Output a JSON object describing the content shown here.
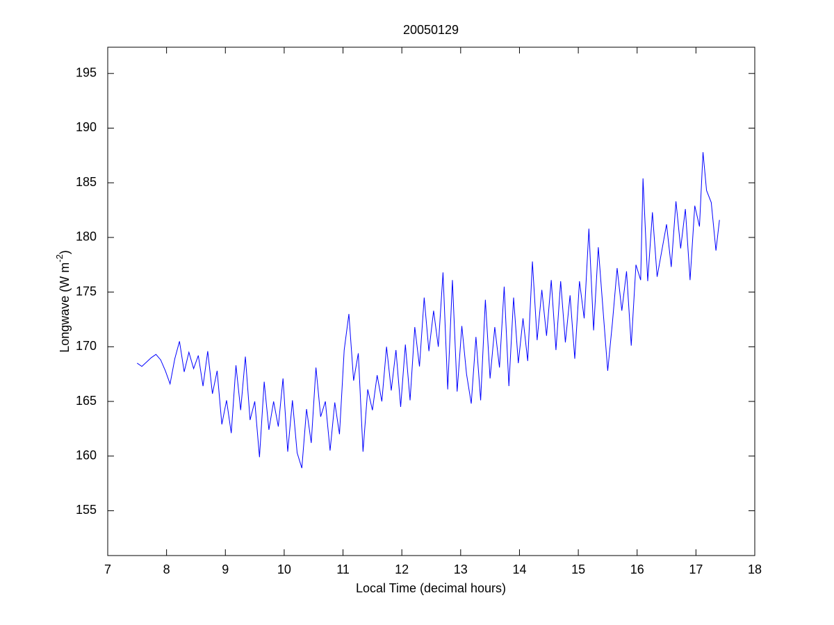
{
  "chart_data": {
    "type": "line",
    "title": "20050129",
    "xlabel": "Local Time (decimal hours)",
    "ylabel": {
      "base": "Longwave (W m",
      "sup": "-2",
      "close": ")"
    },
    "x": [
      7.5,
      7.58,
      7.66,
      7.74,
      7.82,
      7.9,
      7.98,
      8.06,
      8.14,
      8.22,
      8.3,
      8.38,
      8.46,
      8.54,
      8.62,
      8.7,
      8.78,
      8.86,
      8.94,
      9.02,
      9.1,
      9.18,
      9.26,
      9.34,
      9.42,
      9.5,
      9.58,
      9.66,
      9.74,
      9.82,
      9.9,
      9.98,
      10.06,
      10.14,
      10.22,
      10.3,
      10.38,
      10.46,
      10.54,
      10.62,
      10.7,
      10.78,
      10.86,
      10.94,
      11.02,
      11.1,
      11.18,
      11.26,
      11.34,
      11.42,
      11.5,
      11.58,
      11.66,
      11.74,
      11.82,
      11.9,
      11.98,
      12.06,
      12.14,
      12.22,
      12.3,
      12.38,
      12.46,
      12.54,
      12.62,
      12.7,
      12.78,
      12.86,
      12.94,
      13.02,
      13.1,
      13.18,
      13.26,
      13.34,
      13.42,
      13.5,
      13.58,
      13.66,
      13.74,
      13.82,
      13.9,
      13.98,
      14.06,
      14.14,
      14.22,
      14.3,
      14.38,
      14.46,
      14.54,
      14.62,
      14.7,
      14.78,
      14.86,
      14.94,
      15.02,
      15.1,
      15.18,
      15.26,
      15.34,
      15.42,
      15.5,
      15.58,
      15.66,
      15.74,
      15.82,
      15.9,
      15.98,
      16.06,
      16.1,
      16.18,
      16.26,
      16.34,
      16.42,
      16.5,
      16.58,
      16.66,
      16.74,
      16.82,
      16.9,
      16.98,
      17.06,
      17.12,
      17.18,
      17.26,
      17.34,
      17.4
    ],
    "series": [
      {
        "color": "#0000ff",
        "values": [
          168.5,
          168.2,
          168.6,
          169.0,
          169.3,
          168.8,
          167.8,
          166.6,
          168.9,
          170.5,
          167.7,
          169.5,
          168.0,
          169.2,
          166.4,
          169.6,
          165.7,
          167.8,
          162.9,
          165.1,
          162.1,
          168.3,
          164.2,
          169.1,
          163.3,
          165.0,
          159.9,
          166.8,
          162.4,
          165.0,
          162.7,
          167.1,
          160.4,
          165.1,
          160.3,
          158.9,
          164.3,
          161.2,
          168.1,
          163.6,
          165.0,
          160.5,
          164.9,
          162.0,
          169.7,
          173.0,
          166.9,
          169.4,
          160.4,
          166.1,
          164.2,
          167.4,
          165.0,
          170.0,
          166.0,
          169.7,
          164.5,
          170.2,
          165.1,
          171.8,
          168.2,
          174.5,
          169.6,
          173.3,
          170.0,
          176.8,
          166.1,
          176.1,
          165.9,
          171.9,
          167.5,
          164.8,
          170.9,
          165.1,
          174.3,
          167.1,
          171.8,
          168.1,
          175.5,
          166.4,
          174.5,
          168.5,
          172.6,
          168.7,
          177.8,
          170.6,
          175.2,
          171.0,
          176.1,
          169.7,
          176.0,
          170.4,
          174.7,
          168.9,
          176.0,
          172.6,
          180.8,
          171.5,
          179.1,
          173.4,
          167.8,
          172.2,
          177.2,
          173.3,
          176.9,
          170.1,
          177.5,
          176.1,
          185.4,
          176.0,
          182.3,
          176.4,
          178.8,
          181.2,
          177.3,
          183.3,
          179.0,
          182.6,
          176.1,
          182.9,
          181.0,
          187.8,
          184.3,
          183.2,
          178.8,
          181.6
        ]
      }
    ],
    "xlim": [
      7,
      18
    ],
    "xticks": [
      7,
      8,
      9,
      10,
      11,
      12,
      13,
      14,
      15,
      16,
      17,
      18
    ],
    "ylim": [
      150.9,
      197.4
    ],
    "yticks": [
      155,
      160,
      165,
      170,
      175,
      180,
      185,
      190,
      195
    ]
  }
}
